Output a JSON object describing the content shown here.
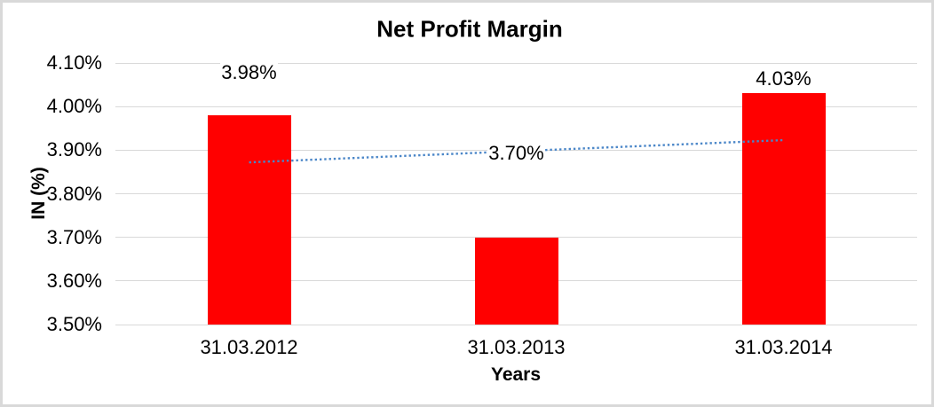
{
  "chart_data": {
    "type": "bar",
    "title": "Net Profit Margin",
    "xlabel": "Years",
    "ylabel": "IN (%)",
    "categories": [
      "31.03.2012",
      "31.03.2013",
      "31.03.2014"
    ],
    "values": [
      3.98,
      3.7,
      4.03
    ],
    "data_labels": [
      "3.98%",
      "3.70%",
      "4.03%"
    ],
    "ylim": [
      3.5,
      4.1
    ],
    "ytick_step": 0.1,
    "ytick_labels": [
      "3.50%",
      "3.60%",
      "3.70%",
      "3.80%",
      "3.90%",
      "4.00%",
      "4.10%"
    ],
    "grid": true,
    "legend": "none",
    "bar_color": "#ff0000",
    "trendline": {
      "type": "linear",
      "style": "dotted",
      "color": "#4a86c8",
      "start_value": 3.872,
      "end_value": 3.923
    },
    "colors": {
      "text": "#000000",
      "gridline": "#d9d9d9",
      "frame_border": "#d9d9d9",
      "background": "#ffffff"
    }
  }
}
